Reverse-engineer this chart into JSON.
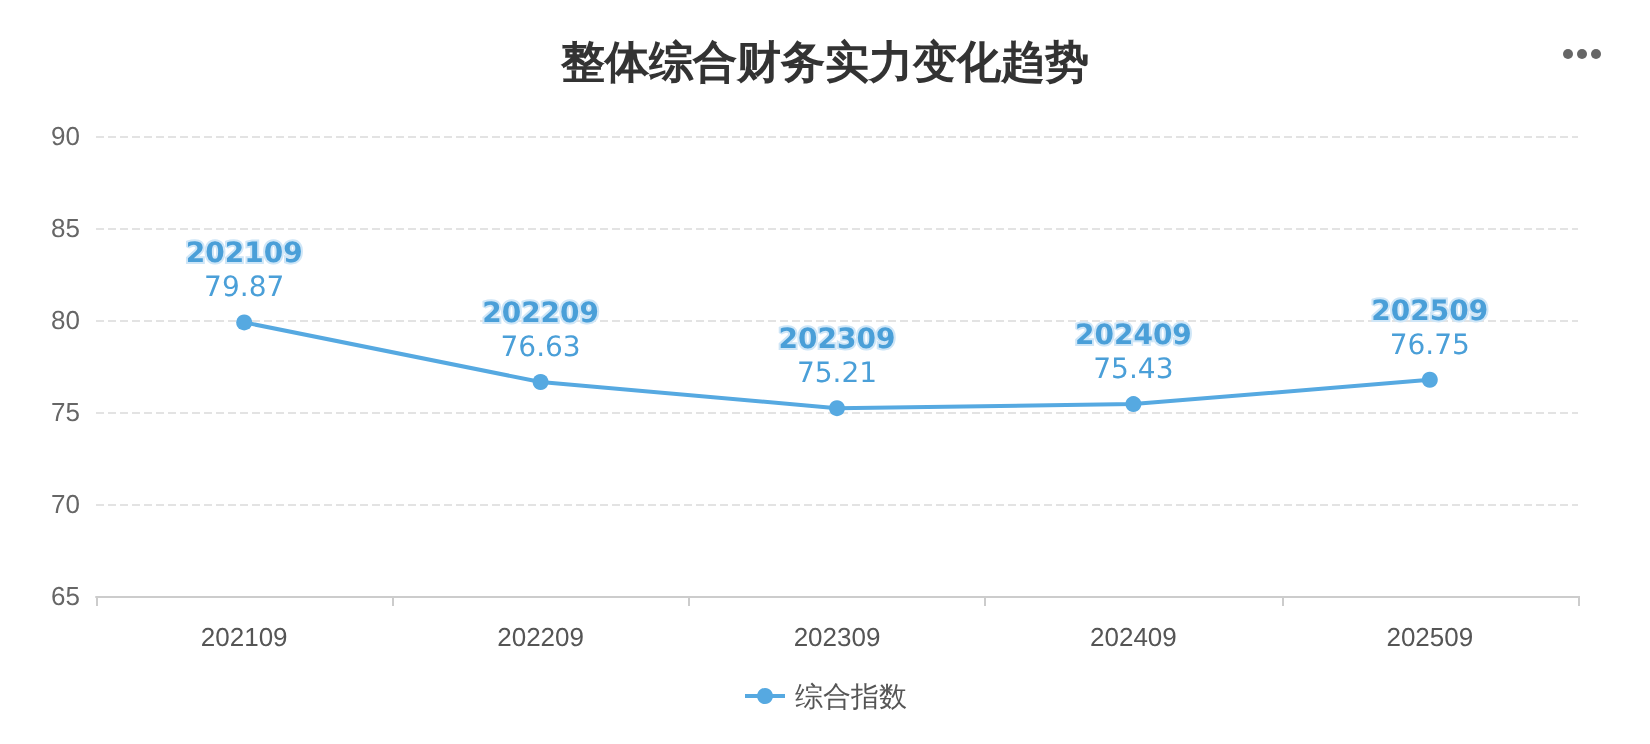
{
  "chart_data": {
    "type": "line",
    "title": "整体综合财务实力变化趋势",
    "categories": [
      "202109",
      "202209",
      "202309",
      "202409",
      "202509"
    ],
    "series": [
      {
        "name": "综合指数",
        "color": "#56a9e1",
        "values": [
          79.87,
          76.63,
          75.21,
          75.43,
          76.75
        ]
      }
    ],
    "ylim": [
      65,
      90
    ],
    "yticks": [
      65,
      70,
      75,
      80,
      85,
      90
    ],
    "grid": "y",
    "legend": "bottom",
    "marker": "circle",
    "line_style": "solid",
    "data_labels": true
  }
}
